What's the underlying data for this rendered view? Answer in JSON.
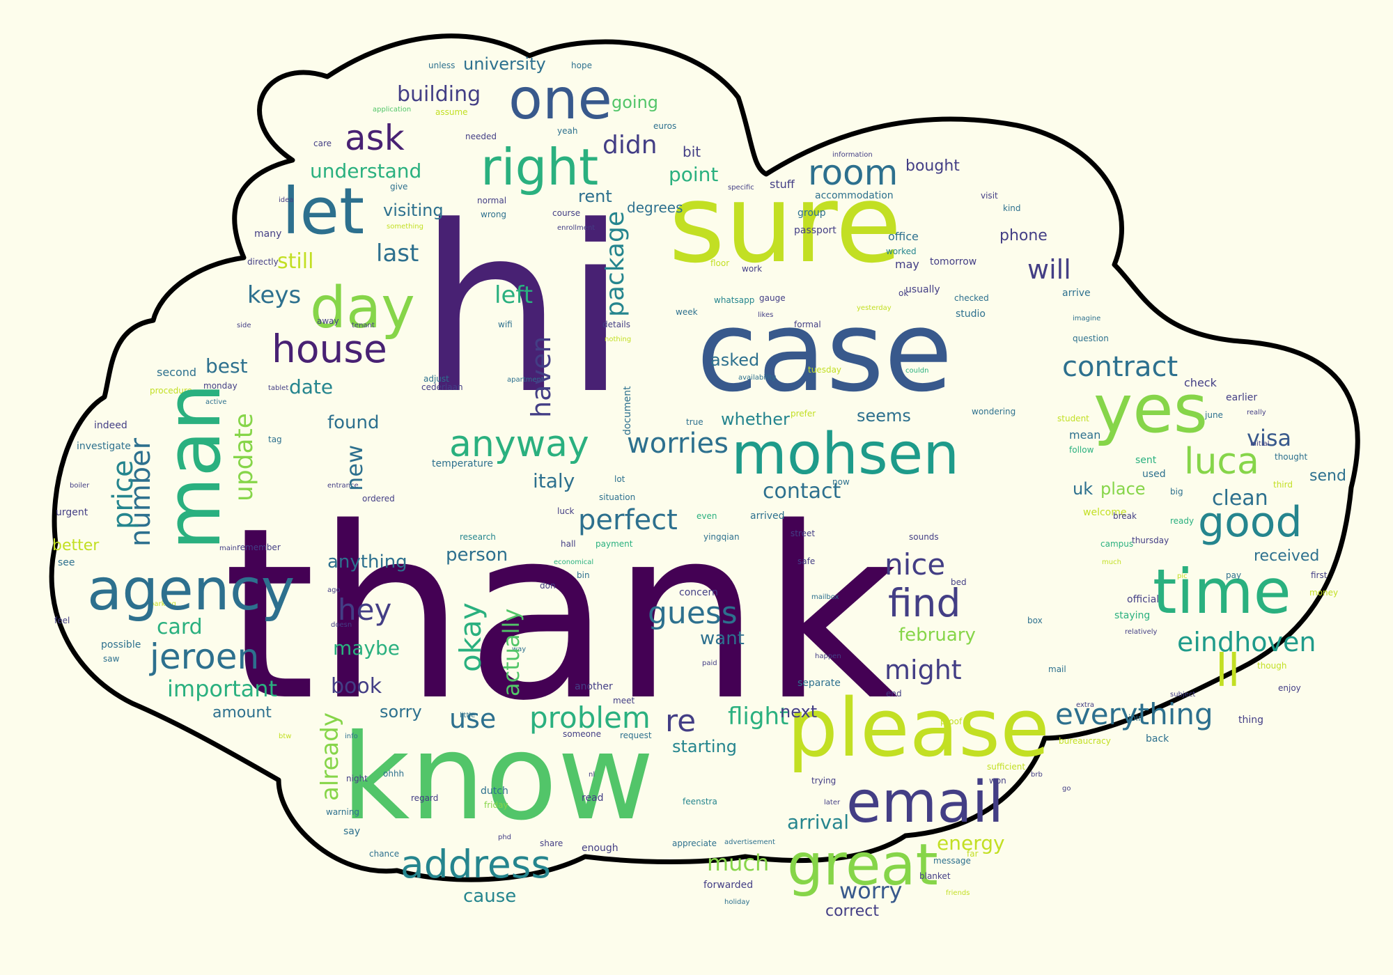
{
  "background_color": "#fdfdec",
  "cloud_fill": "#fdfdec",
  "cloud_outline_color": "#000000",
  "palette": {
    "dark_purple": "#440154",
    "purple": "#482173",
    "indigo": "#433e85",
    "blue": "#38598c",
    "slate_blue": "#2d708e",
    "teal": "#25858e",
    "sea": "#1e9b8a",
    "green": "#2ab07f",
    "light_green": "#52c569",
    "lime": "#86d549",
    "yellow_green": "#c2df23",
    "yellow": "#fde725"
  },
  "words": {
    "thank": "thank",
    "hi": "hi",
    "sure": "sure",
    "case": "case",
    "know": "know",
    "please": "please",
    "mohsen": "mohsen",
    "man": "man",
    "yes": "yes",
    "time": "time",
    "agency": "agency",
    "one": "one",
    "let": "let",
    "right": "right",
    "day": "day",
    "email": "email",
    "great": "great",
    "good": "good",
    "address": "address",
    "anyway": "anyway",
    "house": "house",
    "room": "room",
    "luca": "luca",
    "jeroen": "jeroen",
    "find": "find",
    "problem": "problem",
    "everything": "everything",
    "contract": "contract",
    "eindhoven": "eindhoven",
    "ask": "ask",
    "perfect": "perfect",
    "worries": "worries",
    "guess": "guess",
    "re": "re",
    "ll": "ll",
    "number": "number",
    "price": "price",
    "update": "update",
    "okay": "okay",
    "nice": "nice",
    "hey": "hey",
    "might": "might",
    "important": "important",
    "already": "already",
    "use": "use",
    "didn": "didn",
    "haven": "haven",
    "package": "package",
    "understand": "understand",
    "building": "building",
    "university": "university",
    "last": "last",
    "keys": "keys",
    "left": "left",
    "will": "will",
    "visa": "visa",
    "clean": "clean",
    "contact": "contact",
    "italy": "italy",
    "flight": "flight",
    "actually": "actually",
    "card": "card",
    "book": "book",
    "maybe": "maybe",
    "want": "want",
    "february": "february",
    "worry": "worry",
    "much": "much",
    "energy": "energy",
    "arrival": "arrival",
    "cause": "cause",
    "correct": "correct",
    "starting": "starting",
    "next": "next",
    "sorry": "sorry",
    "anything": "anything",
    "person": "person",
    "better": "better",
    "amount": "amount",
    "best": "best",
    "date": "date",
    "found": "found",
    "new": "new",
    "whether": "whether",
    "seems": "seems",
    "place": "place",
    "uk": "uk",
    "send": "send",
    "received": "received",
    "asked": "asked",
    "going": "going",
    "point": "point",
    "rent": "rent",
    "visiting": "visiting",
    "still": "still",
    "bought": "bought",
    "phone": "phone",
    "bit": "bit",
    "degrees": "degrees",
    "accommodation": "accommodation",
    "office": "office",
    "group": "group",
    "passport": "passport",
    "stuff": "stuff",
    "worked": "worked",
    "may": "may",
    "tomorrow": "tomorrow",
    "usually": "usually",
    "checked": "checked",
    "studio": "studio",
    "arrive": "arrive",
    "formal": "formal",
    "question": "question",
    "imagine": "imagine",
    "tuesday": "tuesday",
    "availability": "availability",
    "couldn": "couldn",
    "check": "check",
    "earlier": "earlier",
    "june": "june",
    "really": "really",
    "wondering": "wondering",
    "student": "student",
    "mean": "mean",
    "follow": "follow",
    "sent": "sent",
    "used": "used",
    "thought": "thought",
    "initial": "initial",
    "third": "third",
    "big": "big",
    "ready": "ready",
    "campus": "campus",
    "thursday": "thursday",
    "much2": "much",
    "pay": "pay",
    "first": "first",
    "money": "money",
    "official": "official",
    "staying": "staying",
    "relatively": "relatively",
    "box": "box",
    "though": "though",
    "enjoy": "enjoy",
    "thing": "thing",
    "subject": "subject",
    "join": "join",
    "back": "back",
    "bureaucracy": "bureaucracy",
    "mail": "mail",
    "extra": "extra",
    "brb": "brb",
    "go": "go",
    "sufficient": "sufficient",
    "won": "won",
    "proof": "proof",
    "end": "end",
    "trying": "trying",
    "later": "later",
    "message": "message",
    "far": "far",
    "blanket": "blanket",
    "friends": "friends",
    "holiday": "holiday",
    "forwarded": "forwarded",
    "advertisement": "advertisement",
    "appreciate": "appreciate",
    "feenstra": "feenstra",
    "request": "request",
    "someone": "someone",
    "read": "read",
    "nl": "nl",
    "friday": "friday",
    "dutch": "dutch",
    "regard": "regard",
    "chance": "chance",
    "share": "share",
    "enough": "enough",
    "phd": "phd",
    "ohhh": "ohhh",
    "night": "night",
    "info": "info",
    "say": "say",
    "warning": "warning",
    "btw": "btw",
    "little": "little",
    "another": "another",
    "meet": "meet",
    "separate": "separate",
    "paid": "paid",
    "way": "way",
    "doesn": "doesn",
    "ago": "ago",
    "bed": "bed",
    "pic": "pic",
    "mailbox": "mailbox",
    "happen": "happen",
    "safe": "safe",
    "concern": "concern",
    "don": "don",
    "bin": "bin",
    "economical": "economical",
    "parking": "parking",
    "feel": "feel",
    "saw": "saw",
    "possible": "possible",
    "see": "see",
    "remember": "remember",
    "main": "main",
    "urgent": "urgent",
    "research": "research",
    "hall": "hall",
    "payment": "payment",
    "yingqian": "yingqian",
    "luck": "luck",
    "street": "street",
    "sounds": "sounds",
    "arrived": "arrived",
    "even": "even",
    "welcome": "welcome",
    "situation": "situation",
    "lot": "lot",
    "break": "break",
    "ordered": "ordered",
    "temperature": "temperature",
    "now": "now",
    "entrance": "entrance",
    "boiler": "boiler",
    "investigate": "investigate",
    "tag": "tag",
    "indeed": "indeed",
    "active": "active",
    "monday": "monday",
    "cederlaan": "cederlaan",
    "procedure": "procedure",
    "second": "second",
    "adjust": "adjust",
    "side": "side",
    "away": "away",
    "tenant": "tenant",
    "wifi": "wifi",
    "apartment": "apartment",
    "document": "document",
    "tablet": "tablet",
    "true": "true",
    "prefer": "prefer",
    "directly": "directly",
    "many": "many",
    "idea": "idea",
    "something": "something",
    "give": "give",
    "care": "care",
    "wrong": "wrong",
    "normal": "normal",
    "needed": "needed",
    "application": "application",
    "assume": "assume",
    "unless": "unless",
    "yeah": "yeah",
    "course": "course",
    "enrollment": "enrollment",
    "euros": "euros",
    "hope": "hope",
    "information": "information",
    "specific": "specific",
    "details": "details",
    "nothing": "nothing",
    "floor": "floor",
    "work": "work",
    "gauge": "gauge",
    "whatsapp": "whatsapp",
    "week": "week",
    "likes": "likes",
    "ok": "ok",
    "yesterday": "yesterday",
    "visit": "visit",
    "kind": "kind"
  }
}
